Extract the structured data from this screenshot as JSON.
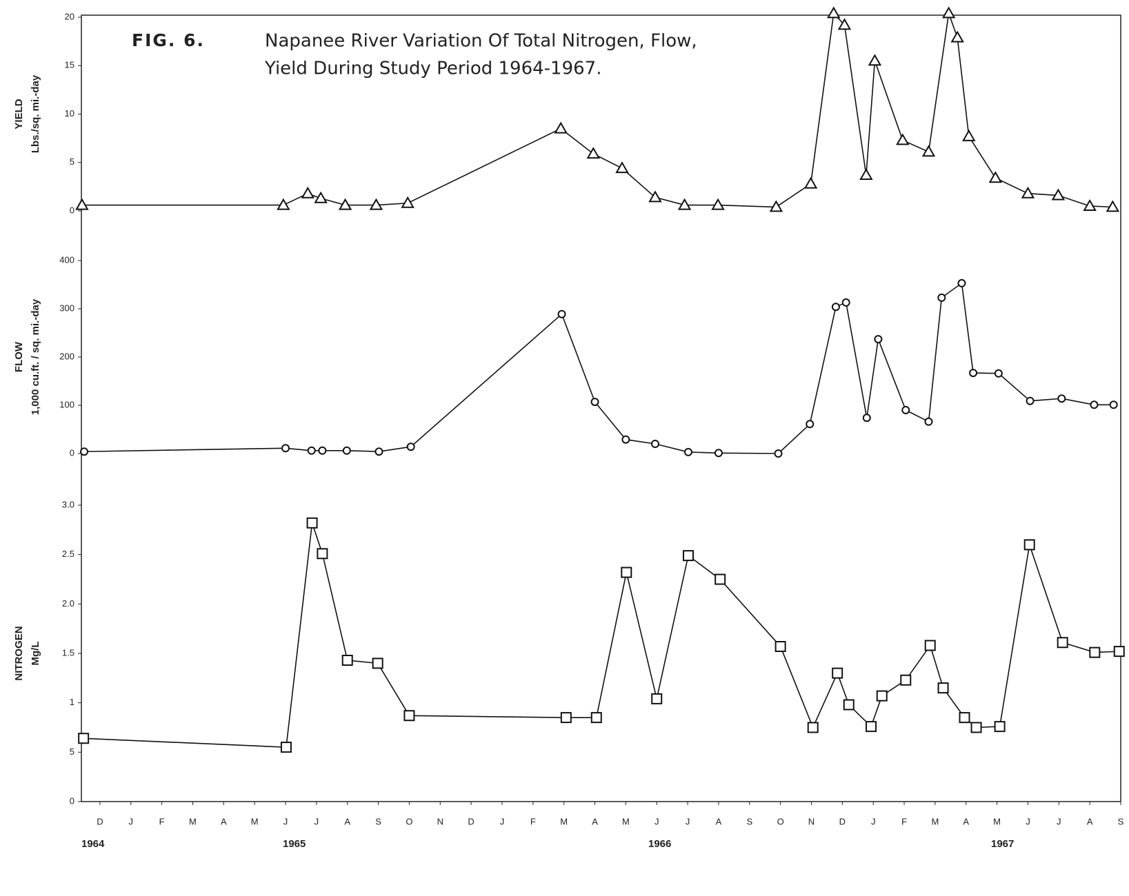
{
  "chart_data": [
    {
      "type": "line",
      "figure_label": "FIG. 6.",
      "title": [
        "Napanee River Variation Of Total Nitrogen, Flow,",
        "Yield During Study Period 1964-1967."
      ],
      "ylabel": [
        "YIELD",
        "Lbs./sq. mi.-day"
      ],
      "marker": "triangle",
      "color": "#111",
      "xlim": [
        -0.6,
        33
      ],
      "ylim": [
        0,
        20
      ],
      "yticks": [
        0,
        5,
        10,
        15,
        20
      ],
      "x": [
        -0.58,
        5.93,
        6.72,
        7.14,
        7.93,
        8.93,
        9.95,
        14.9,
        15.95,
        16.88,
        17.95,
        18.9,
        19.98,
        21.86,
        22.98,
        23.72,
        24.07,
        24.77,
        25.05,
        25.95,
        26.79,
        27.44,
        27.72,
        28.09,
        28.95,
        30.0,
        30.98,
        32.0,
        32.74
      ],
      "values": [
        0.6,
        0.6,
        1.8,
        1.3,
        0.6,
        0.6,
        0.8,
        8.5,
        5.9,
        4.4,
        1.4,
        0.6,
        0.6,
        0.4,
        2.8,
        20.4,
        19.2,
        3.7,
        15.5,
        7.3,
        6.1,
        20.4,
        17.9,
        7.7,
        3.4,
        1.8,
        1.6,
        0.5,
        0.4
      ]
    },
    {
      "type": "line",
      "ylabel": [
        "FLOW",
        "1,000 cu.ft. / sq. mi.-day"
      ],
      "marker": "circle",
      "color": "#111",
      "xlim": [
        -0.6,
        33
      ],
      "ylim": [
        0,
        400
      ],
      "yticks": [
        0,
        100,
        200,
        300,
        400
      ],
      "x": [
        -0.51,
        6.0,
        6.84,
        7.19,
        7.98,
        9.02,
        10.05,
        14.93,
        16.0,
        17.0,
        17.95,
        19.02,
        20.0,
        21.93,
        22.95,
        23.79,
        24.12,
        24.79,
        25.16,
        26.05,
        26.79,
        27.21,
        27.86,
        28.23,
        29.05,
        30.07,
        31.09,
        32.14,
        32.77
      ],
      "values": [
        4,
        11,
        6,
        6,
        6,
        4,
        14,
        289,
        107,
        29,
        20,
        3,
        1,
        0,
        61,
        304,
        313,
        74,
        237,
        90,
        66,
        323,
        353,
        167,
        166,
        109,
        114,
        101,
        101
      ]
    },
    {
      "type": "line",
      "ylabel": [
        "NITROGEN",
        "Mg/L"
      ],
      "marker": "square",
      "color": "#111",
      "xlim": [
        -0.6,
        33
      ],
      "ylim": [
        0,
        3
      ],
      "yticks": [
        0,
        {
          "value": 0.5,
          "label": "5"
        },
        1,
        1.5,
        {
          "value": 2,
          "label": "2.0"
        },
        2.5,
        {
          "value": 3,
          "label": "3.0"
        }
      ],
      "xticks": [
        {
          "value": 0,
          "label": "D"
        },
        {
          "value": 1,
          "label": "J"
        },
        {
          "value": 2,
          "label": "F"
        },
        {
          "value": 3,
          "label": "M"
        },
        {
          "value": 4,
          "label": "A"
        },
        {
          "value": 5,
          "label": "M"
        },
        {
          "value": 6,
          "label": "J"
        },
        {
          "value": 7,
          "label": "J"
        },
        {
          "value": 8,
          "label": "A"
        },
        {
          "value": 9,
          "label": "S"
        },
        {
          "value": 10,
          "label": "O"
        },
        {
          "value": 11,
          "label": "N"
        },
        {
          "value": 12,
          "label": "D"
        },
        {
          "value": 13,
          "label": "J"
        },
        {
          "value": 14,
          "label": "F"
        },
        {
          "value": 15,
          "label": "M"
        },
        {
          "value": 16,
          "label": "A"
        },
        {
          "value": 17,
          "label": "M"
        },
        {
          "value": 18,
          "label": "J"
        },
        {
          "value": 19,
          "label": "J"
        },
        {
          "value": 20,
          "label": "A"
        },
        {
          "value": 21,
          "label": "S"
        },
        {
          "value": 22,
          "label": "O"
        },
        {
          "value": 23,
          "label": "N"
        },
        {
          "value": 24,
          "label": "D"
        },
        {
          "value": 25,
          "label": "J"
        },
        {
          "value": 26,
          "label": "F"
        },
        {
          "value": 27,
          "label": "M"
        },
        {
          "value": 28,
          "label": "A"
        },
        {
          "value": 29,
          "label": "M"
        },
        {
          "value": 30,
          "label": "J"
        },
        {
          "value": 31,
          "label": "J"
        },
        {
          "value": 32,
          "label": "A"
        },
        {
          "value": 33,
          "label": "S"
        }
      ],
      "year_labels": [
        "1964",
        "1965",
        "1966",
        "1967"
      ],
      "x": [
        -0.53,
        6.02,
        6.86,
        7.19,
        8.0,
        8.98,
        10.0,
        15.07,
        16.05,
        17.02,
        18.0,
        19.02,
        20.05,
        22.0,
        23.05,
        23.84,
        24.21,
        24.93,
        25.28,
        26.05,
        26.84,
        27.26,
        27.95,
        28.33,
        29.09,
        30.05,
        31.12,
        32.16,
        32.95
      ],
      "values": [
        0.64,
        0.55,
        2.82,
        2.51,
        1.43,
        1.4,
        0.87,
        0.85,
        0.85,
        2.32,
        1.04,
        2.49,
        2.25,
        1.57,
        0.75,
        1.3,
        0.98,
        0.76,
        1.07,
        1.23,
        1.58,
        1.15,
        0.85,
        0.75,
        0.76,
        2.6,
        1.61,
        1.51,
        1.52
      ]
    }
  ]
}
